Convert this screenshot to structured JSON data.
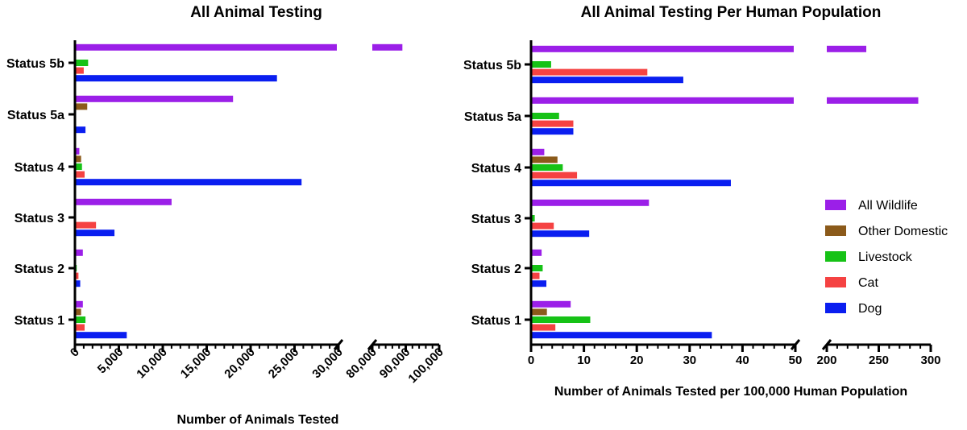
{
  "colors": {
    "All Wildlife": "#9b1fe8",
    "Other Domestic": "#8b5a1a",
    "Livestock": "#16c216",
    "Cat": "#f54242",
    "Dog": "#0a1ef0"
  },
  "legend": {
    "placement": "right",
    "entries": [
      "All Wildlife",
      "Other Domestic",
      "Livestock",
      "Cat",
      "Dog"
    ]
  },
  "chart_data": [
    {
      "type": "bar",
      "orientation": "horizontal",
      "title": "All Animal  Testing",
      "xlabel": "Number of Animals Tested",
      "ylabel": "",
      "categories": [
        "Status 5b",
        "Status 5a",
        "Status 4",
        "Status 3",
        "Status 2",
        "Status 1"
      ],
      "x_segments": [
        {
          "range": [
            0,
            30000
          ],
          "ticks": [
            0,
            5000,
            10000,
            15000,
            20000,
            25000,
            30000
          ],
          "tick_labels": [
            "0",
            "5,000",
            "10,000",
            "15,000",
            "20,000",
            "25,000",
            "30,000"
          ],
          "minor_per_major": 4
        },
        {
          "range": [
            80000,
            100000
          ],
          "ticks": [
            80000,
            90000,
            100000
          ],
          "tick_labels": [
            "80,000",
            "90,000",
            "100,000"
          ],
          "minor_per_major": 4
        }
      ],
      "axis_break": true,
      "series": [
        {
          "name": "All Wildlife",
          "values": [
            89000,
            18000,
            500,
            11000,
            900,
            900
          ]
        },
        {
          "name": "Other Domestic",
          "values": [
            0,
            1400,
            700,
            0,
            0,
            700
          ]
        },
        {
          "name": "Livestock",
          "values": [
            1500,
            0,
            800,
            0,
            200,
            1200
          ]
        },
        {
          "name": "Cat",
          "values": [
            1000,
            0,
            1100,
            2400,
            400,
            1100
          ]
        },
        {
          "name": "Dog",
          "values": [
            23000,
            1200,
            25800,
            4500,
            600,
            5900
          ]
        }
      ]
    },
    {
      "type": "bar",
      "orientation": "horizontal",
      "title": "All Animal Testing Per Human Population",
      "xlabel": "Number of Animals Tested per 100,000 Human Population",
      "ylabel": "",
      "categories": [
        "Status 5b",
        "Status 5a",
        "Status 4",
        "Status 3",
        "Status 2",
        "Status 1"
      ],
      "x_segments": [
        {
          "range": [
            0,
            50
          ],
          "ticks": [
            0,
            10,
            20,
            30,
            40,
            50
          ],
          "tick_labels": [
            "0",
            "10",
            "20",
            "30",
            "40",
            "50"
          ],
          "minor_per_major": 4
        },
        {
          "range": [
            200,
            300
          ],
          "ticks": [
            200,
            250,
            300
          ],
          "tick_labels": [
            "200",
            "250",
            "300"
          ],
          "minor_per_major": 4
        }
      ],
      "axis_break": true,
      "series": [
        {
          "name": "All Wildlife",
          "values": [
            238,
            288,
            2.5,
            22.3,
            2,
            7.5
          ]
        },
        {
          "name": "Other Domestic",
          "values": [
            0,
            0,
            5,
            0,
            0,
            3
          ]
        },
        {
          "name": "Livestock",
          "values": [
            3.8,
            5.3,
            6,
            0.7,
            2.2,
            11.2
          ]
        },
        {
          "name": "Cat",
          "values": [
            22,
            8,
            8.7,
            4.3,
            1.6,
            4.6
          ]
        },
        {
          "name": "Dog",
          "values": [
            28.8,
            8,
            37.8,
            11,
            2.9,
            34.2
          ]
        }
      ]
    }
  ]
}
